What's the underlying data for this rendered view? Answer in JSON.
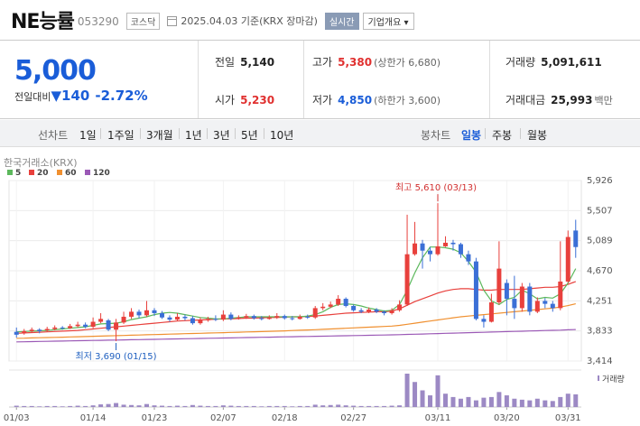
{
  "header": {
    "name": "NE능률",
    "code": "053290",
    "market": "코스닥",
    "date": "2025.04.03",
    "date_note": "기준(KRX 장마감)",
    "live_label": "실시간",
    "info_label": "기업개요 ▾"
  },
  "quote": {
    "price": "5,000",
    "change_label": "전일대비",
    "change": "▼140",
    "change_pct": "-2.72%",
    "prev_label": "전일",
    "prev": "5,140",
    "open_label": "시가",
    "open": "5,230",
    "high_label": "고가",
    "high": "5,380",
    "upper_limit": "(상한가 6,680)",
    "low_label": "저가",
    "low": "4,850",
    "lower_limit": "(하한가 3,600)",
    "volume_label": "거래량",
    "volume": "5,091,611",
    "amount_label": "거래대금",
    "amount": "25,993",
    "amount_unit": "백만"
  },
  "tabs": {
    "line_label": "선차트",
    "periods": [
      "1일",
      "1주일",
      "3개월",
      "1년",
      "3년",
      "5년",
      "10년"
    ],
    "candle_label": "봉차트",
    "candles": [
      "일봉",
      "주봉",
      "월봉"
    ]
  },
  "chart_data": {
    "type": "candlestick",
    "source": "한국거래소(KRX)",
    "legend": [
      {
        "name": "5",
        "color": "#5cb85c"
      },
      {
        "name": "20",
        "color": "#e8403c"
      },
      {
        "name": "60",
        "color": "#f09030"
      },
      {
        "name": "120",
        "color": "#9b59b6"
      }
    ],
    "y_ticks": [
      5926,
      5507,
      5089,
      4670,
      4251,
      3833,
      3414
    ],
    "x_labels": [
      "01/03",
      "01/14",
      "01/23",
      "02/07",
      "02/18",
      "02/27",
      "03/11",
      "03/20",
      "03/31"
    ],
    "high_annotation": "최고 5,610 (03/13)",
    "low_annotation": "최저 3,690 (01/15)",
    "volume_label": "거래량",
    "candles": [
      [
        3820,
        3780,
        3880,
        3740
      ],
      [
        3800,
        3830,
        3860,
        3780
      ],
      [
        3830,
        3850,
        3880,
        3810
      ],
      [
        3850,
        3830,
        3870,
        3800
      ],
      [
        3840,
        3860,
        3890,
        3820
      ],
      [
        3860,
        3880,
        3910,
        3840
      ],
      [
        3880,
        3870,
        3900,
        3850
      ],
      [
        3870,
        3900,
        3930,
        3860
      ],
      [
        3900,
        3920,
        3960,
        3880
      ],
      [
        3920,
        3890,
        3950,
        3870
      ],
      [
        3890,
        3960,
        4020,
        3870
      ],
      [
        3960,
        4000,
        4080,
        3940
      ],
      [
        3980,
        3850,
        4000,
        3830
      ],
      [
        3850,
        3950,
        4000,
        3690
      ],
      [
        3950,
        4030,
        4100,
        3930
      ],
      [
        4030,
        4100,
        4150,
        4000
      ],
      [
        4100,
        4050,
        4130,
        4010
      ],
      [
        4050,
        4120,
        4250,
        4030
      ],
      [
        4120,
        4080,
        4150,
        4040
      ],
      [
        4080,
        4020,
        4110,
        4000
      ],
      [
        4020,
        3990,
        4050,
        3960
      ],
      [
        3990,
        4030,
        4080,
        3970
      ],
      [
        4030,
        4010,
        4060,
        3980
      ],
      [
        4010,
        3940,
        4040,
        3920
      ],
      [
        3940,
        3980,
        4020,
        3920
      ],
      [
        3980,
        4000,
        4030,
        3960
      ],
      [
        4000,
        3990,
        4050,
        3970
      ],
      [
        3990,
        4060,
        4120,
        3970
      ],
      [
        4060,
        4000,
        4090,
        3980
      ],
      [
        4000,
        4020,
        4050,
        3990
      ],
      [
        4020,
        4040,
        4070,
        4000
      ],
      [
        4040,
        4010,
        4060,
        3990
      ],
      [
        4010,
        4000,
        4040,
        3980
      ],
      [
        4000,
        4020,
        4050,
        3990
      ],
      [
        4020,
        4040,
        4080,
        4000
      ],
      [
        4040,
        4010,
        4060,
        3990
      ],
      [
        4010,
        4000,
        4040,
        3980
      ],
      [
        4000,
        4030,
        4060,
        3990
      ],
      [
        4030,
        4020,
        4060,
        4000
      ],
      [
        4020,
        4150,
        4180,
        4000
      ],
      [
        4150,
        4170,
        4220,
        4120
      ],
      [
        4170,
        4200,
        4240,
        4150
      ],
      [
        4200,
        4280,
        4330,
        4180
      ],
      [
        4280,
        4180,
        4300,
        4160
      ],
      [
        4180,
        4120,
        4200,
        4100
      ],
      [
        4120,
        4100,
        4150,
        4080
      ],
      [
        4100,
        4130,
        4160,
        4080
      ],
      [
        4130,
        4100,
        4150,
        4080
      ],
      [
        4100,
        4080,
        4120,
        4050
      ],
      [
        4080,
        4120,
        4150,
        4060
      ],
      [
        4120,
        4200,
        4260,
        4100
      ],
      [
        4200,
        4900,
        5450,
        4180
      ],
      [
        4900,
        5050,
        5350,
        4880
      ],
      [
        5050,
        4950,
        5100,
        4700
      ],
      [
        4950,
        4900,
        5000,
        4800
      ],
      [
        4900,
        5010,
        5610,
        4880
      ],
      [
        5010,
        5060,
        5150,
        5000
      ],
      [
        5060,
        5040,
        5100,
        4950
      ],
      [
        5040,
        4900,
        5060,
        4850
      ],
      [
        4900,
        4800,
        4950,
        4750
      ],
      [
        4800,
        4000,
        4850,
        3980
      ],
      [
        4000,
        3960,
        4050,
        3880
      ],
      [
        3960,
        4230,
        4350,
        3950
      ],
      [
        4230,
        4700,
        5080,
        4200
      ],
      [
        4500,
        4280,
        4550,
        4050
      ],
      [
        4280,
        4150,
        4600,
        4000
      ],
      [
        4150,
        4450,
        4500,
        4100
      ],
      [
        4450,
        4100,
        4500,
        4050
      ],
      [
        4100,
        4250,
        4300,
        4080
      ],
      [
        4250,
        4210,
        4290,
        4150
      ],
      [
        4210,
        4150,
        4250,
        4100
      ],
      [
        4150,
        4520,
        5080,
        4120
      ],
      [
        4520,
        5140,
        5230,
        4500
      ],
      [
        5230,
        5000,
        5380,
        4850
      ]
    ],
    "ma5": [
      3820,
      3825,
      3830,
      3835,
      3840,
      3850,
      3860,
      3870,
      3880,
      3890,
      3910,
      3930,
      3935,
      3940,
      3960,
      3990,
      4010,
      4030,
      4060,
      4080,
      4090,
      4080,
      4060,
      4040,
      4020,
      4010,
      4000,
      4000,
      4010,
      4020,
      4030,
      4030,
      4030,
      4030,
      4030,
      4030,
      4030,
      4030,
      4040,
      4060,
      4100,
      4160,
      4200,
      4210,
      4200,
      4180,
      4150,
      4130,
      4110,
      4120,
      4200,
      4400,
      4640,
      4850,
      5000,
      5000,
      4990,
      4970,
      4920,
      4800,
      4650,
      4400,
      4250,
      4200,
      4270,
      4300,
      4400,
      4350,
      4280,
      4300,
      4290,
      4350,
      4500,
      4700
    ],
    "ma20": [
      3800,
      3805,
      3810,
      3815,
      3820,
      3825,
      3830,
      3835,
      3840,
      3850,
      3860,
      3870,
      3880,
      3890,
      3900,
      3910,
      3920,
      3930,
      3940,
      3950,
      3960,
      3970,
      3975,
      3980,
      3985,
      3990,
      3995,
      4000,
      4000,
      4005,
      4010,
      4010,
      4015,
      4020,
      4020,
      4025,
      4030,
      4030,
      4035,
      4040,
      4050,
      4060,
      4070,
      4080,
      4085,
      4090,
      4095,
      4100,
      4100,
      4110,
      4140,
      4190,
      4240,
      4280,
      4320,
      4360,
      4390,
      4410,
      4420,
      4420,
      4410,
      4400,
      4400,
      4410,
      4410,
      4410,
      4410,
      4420,
      4430,
      4440,
      4440,
      4450,
      4480,
      4520
    ],
    "ma60": [
      3730,
      3732,
      3735,
      3738,
      3740,
      3743,
      3746,
      3749,
      3752,
      3755,
      3758,
      3761,
      3764,
      3767,
      3770,
      3773,
      3776,
      3779,
      3782,
      3785,
      3788,
      3791,
      3794,
      3797,
      3800,
      3803,
      3806,
      3809,
      3812,
      3815,
      3818,
      3821,
      3824,
      3827,
      3830,
      3834,
      3838,
      3842,
      3846,
      3850,
      3855,
      3860,
      3865,
      3870,
      3875,
      3880,
      3885,
      3890,
      3895,
      3900,
      3910,
      3925,
      3940,
      3955,
      3970,
      3985,
      4000,
      4015,
      4030,
      4040,
      4050,
      4060,
      4070,
      4080,
      4090,
      4100,
      4110,
      4120,
      4130,
      4140,
      4150,
      4165,
      4185,
      4210
    ],
    "ma120": [
      3680,
      3682,
      3684,
      3686,
      3688,
      3690,
      3692,
      3694,
      3696,
      3698,
      3700,
      3702,
      3704,
      3706,
      3708,
      3710,
      3712,
      3714,
      3716,
      3718,
      3720,
      3722,
      3724,
      3726,
      3728,
      3730,
      3732,
      3734,
      3736,
      3738,
      3740,
      3742,
      3744,
      3746,
      3748,
      3750,
      3752,
      3754,
      3756,
      3758,
      3760,
      3762,
      3764,
      3766,
      3768,
      3770,
      3772,
      3774,
      3776,
      3778,
      3781,
      3784,
      3787,
      3790,
      3793,
      3796,
      3799,
      3802,
      3805,
      3808,
      3811,
      3814,
      3817,
      3820,
      3823,
      3826,
      3829,
      3832,
      3835,
      3838,
      3841,
      3844,
      3848,
      3852
    ],
    "volume": [
      0.04,
      0.03,
      0.03,
      0.02,
      0.03,
      0.03,
      0.02,
      0.03,
      0.04,
      0.03,
      0.05,
      0.08,
      0.09,
      0.12,
      0.07,
      0.06,
      0.05,
      0.09,
      0.05,
      0.04,
      0.03,
      0.04,
      0.03,
      0.06,
      0.04,
      0.03,
      0.03,
      0.05,
      0.04,
      0.03,
      0.03,
      0.03,
      0.02,
      0.03,
      0.03,
      0.03,
      0.02,
      0.03,
      0.03,
      0.07,
      0.05,
      0.06,
      0.07,
      0.05,
      0.04,
      0.03,
      0.03,
      0.03,
      0.03,
      0.04,
      0.05,
      1.0,
      0.75,
      0.5,
      0.35,
      0.95,
      0.4,
      0.3,
      0.25,
      0.3,
      0.2,
      0.28,
      0.3,
      0.45,
      0.35,
      0.25,
      0.22,
      0.2,
      0.25,
      0.2,
      0.18,
      0.3,
      0.4,
      0.38
    ]
  }
}
